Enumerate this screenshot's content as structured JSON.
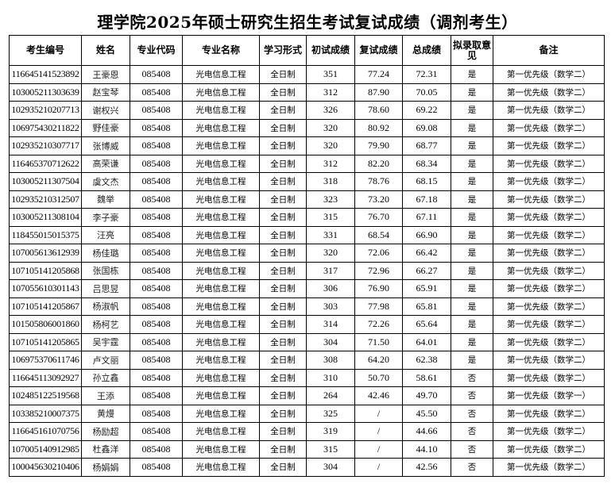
{
  "title": "理学院2025年硕士研究生招生考试复试成绩（调剂考生）",
  "headers": [
    "考生编号",
    "姓名",
    "专业代码",
    "专业名称",
    "学习形式",
    "初试成绩",
    "复试成绩",
    "总成绩",
    "拟录取意见",
    "备注"
  ],
  "rows": [
    [
      "116645141523892",
      "王豪恩",
      "085408",
      "光电信息工程",
      "全日制",
      "351",
      "77.24",
      "72.31",
      "是",
      "第一优先级（数学二）"
    ],
    [
      "103005211303639",
      "赵宝琴",
      "085408",
      "光电信息工程",
      "全日制",
      "312",
      "87.90",
      "70.05",
      "是",
      "第一优先级（数学二）"
    ],
    [
      "102935210207713",
      "谢权兴",
      "085408",
      "光电信息工程",
      "全日制",
      "326",
      "78.60",
      "69.22",
      "是",
      "第一优先级（数学二）"
    ],
    [
      "106975430211822",
      "野佳豪",
      "085408",
      "光电信息工程",
      "全日制",
      "320",
      "80.92",
      "69.08",
      "是",
      "第一优先级（数学二）"
    ],
    [
      "102935210307717",
      "张博威",
      "085408",
      "光电信息工程",
      "全日制",
      "320",
      "79.90",
      "68.77",
      "是",
      "第一优先级（数学二）"
    ],
    [
      "116465370712622",
      "高荣谦",
      "085408",
      "光电信息工程",
      "全日制",
      "312",
      "82.20",
      "68.34",
      "是",
      "第一优先级（数学二）"
    ],
    [
      "103005211307504",
      "虞文杰",
      "085408",
      "光电信息工程",
      "全日制",
      "318",
      "78.76",
      "68.15",
      "是",
      "第一优先级（数学二）"
    ],
    [
      "102935210312507",
      "魏举",
      "085408",
      "光电信息工程",
      "全日制",
      "323",
      "73.20",
      "67.18",
      "是",
      "第一优先级（数学二）"
    ],
    [
      "103005211308104",
      "李子豪",
      "085408",
      "光电信息工程",
      "全日制",
      "315",
      "76.70",
      "67.11",
      "是",
      "第一优先级（数学二）"
    ],
    [
      "118455015015375",
      "汪亮",
      "085408",
      "光电信息工程",
      "全日制",
      "331",
      "68.54",
      "66.90",
      "是",
      "第一优先级（数学二）"
    ],
    [
      "107005613612939",
      "杨佳璐",
      "085408",
      "光电信息工程",
      "全日制",
      "320",
      "72.06",
      "66.42",
      "是",
      "第一优先级（数学二）"
    ],
    [
      "107105141205868",
      "张国栋",
      "085408",
      "光电信息工程",
      "全日制",
      "317",
      "72.96",
      "66.27",
      "是",
      "第一优先级（数学二）"
    ],
    [
      "107055610301143",
      "吕思昱",
      "085408",
      "光电信息工程",
      "全日制",
      "306",
      "76.90",
      "65.91",
      "是",
      "第一优先级（数学二）"
    ],
    [
      "107105141205867",
      "杨淑帆",
      "085408",
      "光电信息工程",
      "全日制",
      "303",
      "77.98",
      "65.81",
      "是",
      "第一优先级（数学二）"
    ],
    [
      "101505806001860",
      "杨柯艺",
      "085408",
      "光电信息工程",
      "全日制",
      "314",
      "72.26",
      "65.64",
      "是",
      "第一优先级（数学二）"
    ],
    [
      "107105141205865",
      "吴宇霆",
      "085408",
      "光电信息工程",
      "全日制",
      "304",
      "71.50",
      "64.01",
      "是",
      "第一优先级（数学二）"
    ],
    [
      "106975370611746",
      "卢文丽",
      "085408",
      "光电信息工程",
      "全日制",
      "308",
      "64.20",
      "62.38",
      "是",
      "第一优先级（数学二）"
    ],
    [
      "116645113092927",
      "孙立鑫",
      "085408",
      "光电信息工程",
      "全日制",
      "310",
      "50.70",
      "58.61",
      "否",
      "第一优先级（数学二）"
    ],
    [
      "102485122519568",
      "王添",
      "085408",
      "光电信息工程",
      "全日制",
      "264",
      "42.46",
      "49.70",
      "否",
      "第一优先级（数学一）"
    ],
    [
      "103385210007375",
      "黄熳",
      "085408",
      "光电信息工程",
      "全日制",
      "325",
      "/",
      "45.50",
      "否",
      "第一优先级（数学二）"
    ],
    [
      "116645161070756",
      "杨励超",
      "085408",
      "光电信息工程",
      "全日制",
      "319",
      "/",
      "44.66",
      "否",
      "第一优先级（数学二）"
    ],
    [
      "107005140912985",
      "杜鑫洋",
      "085408",
      "光电信息工程",
      "全日制",
      "315",
      "/",
      "44.10",
      "否",
      "第一优先级（数学二）"
    ],
    [
      "100045630210406",
      "杨娟娟",
      "085408",
      "光电信息工程",
      "全日制",
      "304",
      "/",
      "42.56",
      "否",
      "第一优先级（数学二）"
    ]
  ]
}
